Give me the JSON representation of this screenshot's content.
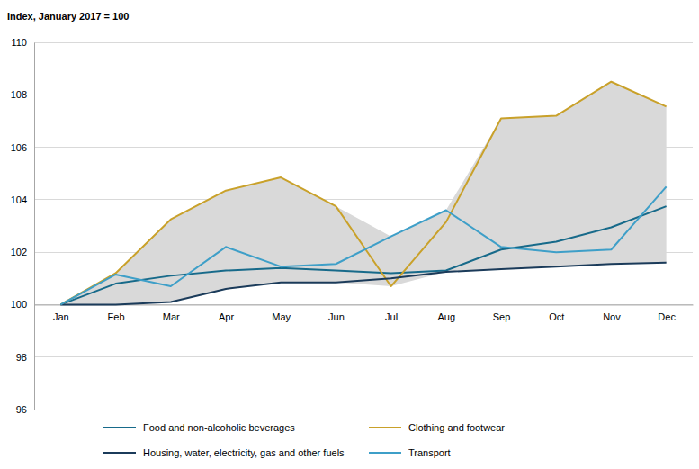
{
  "chart_data": {
    "type": "line",
    "y_label": "Index, January 2017 = 100",
    "categories": [
      "Jan",
      "Feb",
      "Mar",
      "Apr",
      "May",
      "Jun",
      "Jul",
      "Aug",
      "Sep",
      "Oct",
      "Nov",
      "Dec"
    ],
    "series": [
      {
        "name": "Food and non-alcoholic beverages",
        "color": "#176a8a",
        "values": [
          100,
          100.8,
          101.1,
          101.3,
          101.4,
          101.3,
          101.2,
          101.3,
          102.1,
          102.4,
          102.95,
          103.75
        ]
      },
      {
        "name": "Clothing and footwear",
        "color": "#c9a12a",
        "values": [
          100,
          101.2,
          103.25,
          104.35,
          104.85,
          103.75,
          100.7,
          103.15,
          107.1,
          107.2,
          108.5,
          107.55
        ]
      },
      {
        "name": "Housing, water, electricity, gas and other fuels",
        "color": "#1b3b5a",
        "values": [
          100,
          100.0,
          100.1,
          100.6,
          100.85,
          100.85,
          101.0,
          101.25,
          101.35,
          101.45,
          101.55,
          101.6
        ]
      },
      {
        "name": "Transport",
        "color": "#3e9fc8",
        "values": [
          100,
          101.15,
          100.7,
          102.2,
          101.45,
          101.55,
          102.6,
          103.6,
          102.2,
          102.0,
          102.1,
          104.5
        ]
      }
    ],
    "ylim": [
      96,
      110
    ],
    "yticks": [
      96,
      98,
      100,
      102,
      104,
      106,
      108,
      110
    ],
    "grid": true,
    "legend": "bottom"
  }
}
